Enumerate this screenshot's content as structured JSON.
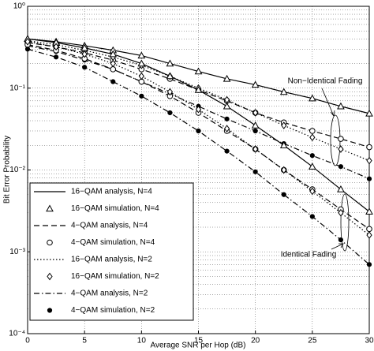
{
  "chart_data": {
    "type": "line",
    "xlabel": "Average SNR per Hop (dB)",
    "ylabel": "Bit Error Probability",
    "x": [
      0,
      2.5,
      5,
      7.5,
      10,
      12.5,
      15,
      17.5,
      20,
      22.5,
      25,
      27.5,
      30
    ],
    "xlim": [
      0,
      30
    ],
    "xticks": [
      0,
      5,
      10,
      15,
      20,
      25,
      30
    ],
    "ylim": [
      0.0001,
      1
    ],
    "log_y": true,
    "grid": true,
    "legend_position": "lower left",
    "yticks": [
      {
        "value": 1,
        "label": "10⁰"
      },
      {
        "value": 0.1,
        "label": "10⁻¹"
      },
      {
        "value": 0.01,
        "label": "10⁻²"
      },
      {
        "value": 0.001,
        "label": "10⁻³"
      },
      {
        "value": 0.0001,
        "label": "10⁻⁴"
      }
    ],
    "color": "#000000",
    "legend": [
      {
        "name": "16−QAM analysis, N=4",
        "line": "solid",
        "marker": null
      },
      {
        "name": "16−QAM simulation, N=4",
        "line": null,
        "marker": "triangle"
      },
      {
        "name": "4−QAM analysis, N=4",
        "line": "dashed",
        "marker": null
      },
      {
        "name": "4−QAM simulation, N=4",
        "line": null,
        "marker": "circle"
      },
      {
        "name": "16−QAM analysis, N=2",
        "line": "dotted",
        "marker": null
      },
      {
        "name": "16−QAM simulation, N=2",
        "line": null,
        "marker": "diamond"
      },
      {
        "name": "4−QAM analysis, N=2",
        "line": "dashdot",
        "marker": null
      },
      {
        "name": "4−QAM simulation, N=2",
        "line": null,
        "marker": "star"
      }
    ],
    "groups": [
      {
        "label": "Non−Identical Fading",
        "series": [
          {
            "values": [
              0.4,
              0.37,
              0.33,
              0.29,
              0.25,
              0.2,
              0.16,
              0.13,
              0.11,
              0.09,
              0.075,
              0.06,
              0.049
            ]
          },
          {
            "values": [
              0.4,
              0.37,
              0.33,
              0.29,
              0.25,
              0.2,
              0.16,
              0.13,
              0.11,
              0.09,
              0.075,
              0.06,
              0.049
            ]
          },
          {
            "values": [
              0.36,
              0.32,
              0.27,
              0.22,
              0.17,
              0.13,
              0.095,
              0.07,
              0.05,
              0.038,
              0.03,
              0.024,
              0.019
            ]
          },
          {
            "values": [
              0.36,
              0.32,
              0.27,
              0.22,
              0.17,
              0.13,
              0.095,
              0.07,
              0.05,
              0.038,
              0.03,
              0.024,
              0.019
            ]
          },
          {
            "values": [
              0.38,
              0.34,
              0.29,
              0.24,
              0.19,
              0.14,
              0.1,
              0.072,
              0.05,
              0.035,
              0.025,
              0.018,
              0.013
            ]
          },
          {
            "values": [
              0.38,
              0.34,
              0.29,
              0.24,
              0.19,
              0.14,
              0.1,
              0.072,
              0.05,
              0.035,
              0.025,
              0.018,
              0.013
            ]
          },
          {
            "values": [
              0.33,
              0.28,
              0.22,
              0.17,
              0.12,
              0.085,
              0.06,
              0.042,
              0.03,
              0.021,
              0.015,
              0.011,
              0.0078
            ]
          },
          {
            "values": [
              0.33,
              0.28,
              0.22,
              0.17,
              0.12,
              0.085,
              0.06,
              0.042,
              0.03,
              0.021,
              0.015,
              0.011,
              0.0078
            ]
          }
        ]
      },
      {
        "label": "Identical Fading",
        "series": [
          {
            "values": [
              0.4,
              0.36,
              0.31,
              0.26,
              0.2,
              0.14,
              0.095,
              0.06,
              0.035,
              0.02,
              0.011,
              0.0058,
              0.0031
            ]
          },
          {
            "values": [
              0.4,
              0.36,
              0.31,
              0.26,
              0.2,
              0.14,
              0.095,
              0.06,
              0.035,
              0.02,
              0.011,
              0.0058,
              0.0031
            ]
          },
          {
            "values": [
              0.34,
              0.29,
              0.23,
              0.17,
              0.12,
              0.08,
              0.05,
              0.03,
              0.018,
              0.01,
              0.0058,
              0.0033,
              0.0019
            ]
          },
          {
            "values": [
              0.34,
              0.29,
              0.23,
              0.17,
              0.12,
              0.08,
              0.05,
              0.03,
              0.018,
              0.01,
              0.0058,
              0.0033,
              0.0019
            ]
          },
          {
            "values": [
              0.37,
              0.32,
              0.26,
              0.2,
              0.14,
              0.09,
              0.055,
              0.032,
              0.018,
              0.01,
              0.0055,
              0.003,
              0.0016
            ]
          },
          {
            "values": [
              0.37,
              0.32,
              0.26,
              0.2,
              0.14,
              0.09,
              0.055,
              0.032,
              0.018,
              0.01,
              0.0055,
              0.003,
              0.0016
            ]
          },
          {
            "values": [
              0.3,
              0.24,
              0.18,
              0.12,
              0.08,
              0.05,
              0.03,
              0.017,
              0.0095,
              0.005,
              0.0027,
              0.0014,
              0.0007
            ]
          },
          {
            "values": [
              0.3,
              0.24,
              0.18,
              0.12,
              0.08,
              0.05,
              0.03,
              0.017,
              0.0095,
              0.005,
              0.0027,
              0.0014,
              0.0007
            ]
          }
        ]
      }
    ]
  }
}
